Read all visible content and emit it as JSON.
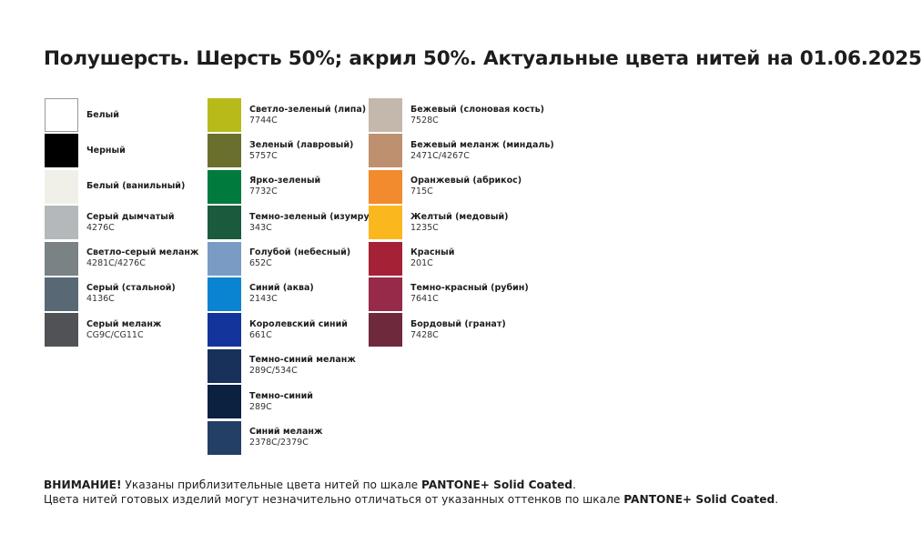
{
  "title": "Полушерсть. Шерсть 50%; акрил 50%. Актуальные цвета нитей на 01.06.2025",
  "columns": [
    [
      {
        "name": "Белый",
        "code": "",
        "color": "#ffffff"
      },
      {
        "name": "Черный",
        "code": "",
        "color": "#000000"
      },
      {
        "name": "Белый (ванильный)",
        "code": "",
        "color": "#f0f0e8"
      },
      {
        "name": "Серый дымчатый",
        "code": "4276C",
        "color": "#b4b8ba"
      },
      {
        "name": "Светло-серый меланж",
        "code": "4281C/4276C",
        "color": "#7a8286"
      },
      {
        "name": "Серый (стальной)",
        "code": "4136C",
        "color": "#586875"
      },
      {
        "name": "Серый меланж",
        "code": "CG9C/CG11C",
        "color": "#505256"
      }
    ],
    [
      {
        "name": "Светло-зеленый (липа)",
        "code": "7744C",
        "color": "#b8ba1a"
      },
      {
        "name": "Зеленый (лавровый)",
        "code": "5757C",
        "color": "#6b6f2e"
      },
      {
        "name": "Ярко-зеленый",
        "code": "7732C",
        "color": "#007a3d"
      },
      {
        "name": "Темно-зеленый (изумруд)",
        "code": "343C",
        "color": "#1b5b3c"
      },
      {
        "name": "Голубой (небесный)",
        "code": "652C",
        "color": "#7a9cc4"
      },
      {
        "name": "Синий (аква)",
        "code": "2143C",
        "color": "#0a84d0"
      },
      {
        "name": "Королевский синий",
        "code": "661C",
        "color": "#13349a"
      },
      {
        "name": "Темно-синий меланж",
        "code": "289C/534C",
        "color": "#18315a"
      },
      {
        "name": "Темно-синий",
        "code": "289C",
        "color": "#0c2040"
      },
      {
        "name": "Синий меланж",
        "code": "2378C/2379C",
        "color": "#243f66"
      }
    ],
    [
      {
        "name": "Бежевый (слоновая кость)",
        "code": "7528C",
        "color": "#c4b8ac"
      },
      {
        "name": "Бежевый меланж (миндаль)",
        "code": "2471C/4267C",
        "color": "#bf9070"
      },
      {
        "name": "Оранжевый (абрикос)",
        "code": "715C",
        "color": "#f28a2e"
      },
      {
        "name": "Желтый (медовый)",
        "code": "1235C",
        "color": "#fbb81e"
      },
      {
        "name": "Красный",
        "code": "201C",
        "color": "#a52236"
      },
      {
        "name": "Темно-красный (рубин)",
        "code": "7641C",
        "color": "#962a48"
      },
      {
        "name": "Бордовый (гранат)",
        "code": "7428C",
        "color": "#6e2a3c"
      }
    ]
  ],
  "notes": {
    "line1_bold": "ВНИМАНИЕ!",
    "line1_text": " Указаны приблизительные цвета нитей по шкале ",
    "line1_brand": "PANTONE+ Solid Coated",
    "line1_end": ".",
    "line2_text": "Цвета нитей готовых изделий могут незначительно отличаться от указанных оттенков по шкале ",
    "line2_brand": "PANTONE+ Solid Coated",
    "line2_end": "."
  }
}
